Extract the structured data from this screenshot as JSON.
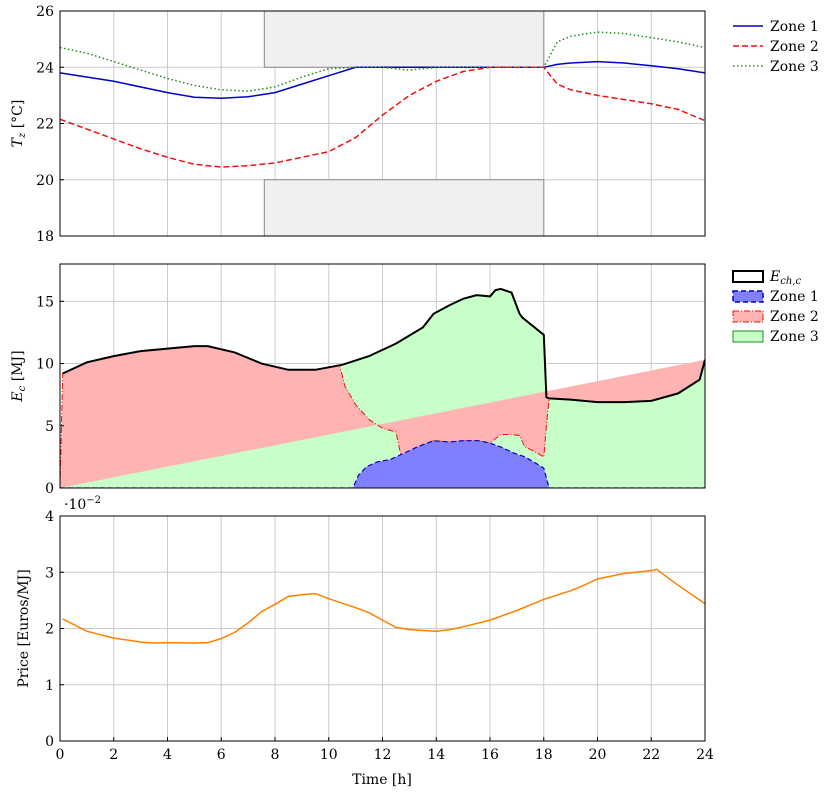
{
  "xaxis": {
    "label": "Time [h]",
    "ticks": [
      "0",
      "2",
      "4",
      "6",
      "8",
      "10",
      "12",
      "14",
      "16",
      "18",
      "20",
      "22",
      "24"
    ],
    "xlim": [
      0,
      24
    ]
  },
  "colors": {
    "zone1": "#0000cc",
    "zone2": "#ee1111",
    "zone3": "#228822",
    "price": "#ff8000",
    "bound_fill": "#f0f0f0",
    "area_zone1": "#8080ff",
    "area_zone2": "#ffb3b3",
    "area_zone3": "#c8ffc8"
  },
  "chart_data": [
    {
      "type": "line",
      "ylabel": "T_z [°C]",
      "ylim": [
        18,
        26
      ],
      "yticks": [
        "18",
        "20",
        "22",
        "24",
        "26"
      ],
      "grid": true,
      "legend_position": "right-top",
      "comfort_bounds": {
        "upper": [
          [
            0,
            26
          ],
          [
            7.6,
            26
          ],
          [
            7.6,
            24
          ],
          [
            18,
            24
          ],
          [
            18,
            26
          ]
        ],
        "lower": [
          [
            0,
            18
          ],
          [
            7.6,
            18
          ],
          [
            7.6,
            20
          ],
          [
            18,
            20
          ],
          [
            18,
            18
          ]
        ]
      },
      "series": [
        {
          "name": "Zone 1",
          "style": "solid",
          "x": [
            0,
            2,
            4,
            5,
            6,
            7,
            8,
            9,
            10,
            11,
            12,
            13,
            14,
            15,
            16,
            17,
            18,
            18.5,
            19,
            20,
            21,
            22,
            23,
            24
          ],
          "y": [
            23.8,
            23.5,
            23.1,
            22.93,
            22.9,
            22.95,
            23.1,
            23.4,
            23.7,
            24.0,
            24.0,
            24.0,
            24.0,
            24.0,
            24.0,
            24.0,
            24.0,
            24.1,
            24.15,
            24.2,
            24.15,
            24.05,
            23.95,
            23.8
          ]
        },
        {
          "name": "Zone 2",
          "style": "dashed",
          "x": [
            0,
            1,
            2,
            3,
            4,
            5,
            6,
            7,
            8,
            9,
            10,
            11,
            12,
            13,
            14,
            15,
            16,
            17,
            18,
            18.5,
            19,
            20,
            21,
            22,
            23,
            24
          ],
          "y": [
            22.15,
            21.8,
            21.45,
            21.1,
            20.8,
            20.55,
            20.45,
            20.5,
            20.6,
            20.8,
            21.0,
            21.5,
            22.3,
            23.0,
            23.5,
            23.85,
            24.0,
            24.0,
            24.0,
            23.4,
            23.2,
            23.0,
            22.85,
            22.7,
            22.5,
            22.1
          ]
        },
        {
          "name": "Zone 3",
          "style": "dotted",
          "x": [
            0,
            1,
            2,
            3,
            4,
            5,
            6,
            7,
            8,
            9,
            10,
            11,
            12,
            13,
            14,
            15,
            16,
            17,
            18,
            18.5,
            19,
            20,
            21,
            22,
            23,
            24
          ],
          "y": [
            24.7,
            24.5,
            24.2,
            23.9,
            23.6,
            23.35,
            23.2,
            23.15,
            23.3,
            23.65,
            23.95,
            24.0,
            24.0,
            23.9,
            24.0,
            24.0,
            24.0,
            24.0,
            24.0,
            24.9,
            25.1,
            25.25,
            25.2,
            25.05,
            24.9,
            24.7
          ]
        }
      ]
    },
    {
      "type": "area",
      "ylabel": "E_c [MJ]",
      "ylim": [
        0,
        18
      ],
      "yticks": [
        "0",
        "5",
        "10",
        "15"
      ],
      "grid": true,
      "legend_position": "right-top",
      "total": {
        "name": "E_ch,c",
        "x": [
          0.1,
          1,
          2,
          3,
          4,
          5,
          5.5,
          6.5,
          7.5,
          8.5,
          9.5,
          10.5,
          11.5,
          12.5,
          13.5,
          13.9,
          14.5,
          15,
          15.5,
          16,
          16.2,
          16.4,
          16.8,
          17.1,
          17.2,
          18,
          18.1,
          18.2,
          19,
          20,
          21,
          22,
          23,
          23.8,
          24
        ],
        "y": [
          9.2,
          10.1,
          10.6,
          11.0,
          11.2,
          11.4,
          11.4,
          10.9,
          10.0,
          9.5,
          9.5,
          9.9,
          10.6,
          11.6,
          12.9,
          14.0,
          14.7,
          15.2,
          15.5,
          15.4,
          15.9,
          16.0,
          15.7,
          14.0,
          13.7,
          12.3,
          7.3,
          7.2,
          7.1,
          6.9,
          6.9,
          7.0,
          7.6,
          8.7,
          10.3
        ]
      },
      "zone1": {
        "name": "Zone 1",
        "x": [
          0,
          10.9,
          11.1,
          11.4,
          11.8,
          12.3,
          12.8,
          13.3,
          13.9,
          14.5,
          15.0,
          15.6,
          16.0,
          16.4,
          16.9,
          17.3,
          17.7,
          18.0,
          18.2,
          24
        ],
        "y": [
          0,
          0,
          1.0,
          1.7,
          2.1,
          2.3,
          2.8,
          3.3,
          3.8,
          3.7,
          3.8,
          3.8,
          3.6,
          3.3,
          2.8,
          2.5,
          2.0,
          1.6,
          0,
          0
        ]
      },
      "zone12": {
        "name": "Zone 2",
        "x": [
          0,
          0.1,
          1,
          2,
          3,
          4,
          5,
          5.5,
          6.5,
          7.5,
          8.5,
          9.5,
          10.4,
          10.6,
          11.0,
          11.5,
          12.0,
          12.5,
          12.7,
          13.3,
          13.9,
          14.5,
          15.0,
          15.6,
          16.0,
          16.4,
          16.8,
          17.1,
          17.3,
          17.6,
          18.0,
          18.1,
          18.2,
          19,
          20,
          21,
          22,
          23,
          23.8,
          24
        ],
        "y": [
          0,
          9.2,
          10.1,
          10.6,
          11.0,
          11.2,
          11.4,
          11.4,
          10.9,
          10.0,
          9.5,
          9.5,
          9.9,
          8.2,
          6.7,
          5.5,
          4.8,
          4.5,
          2.5,
          3.3,
          3.8,
          3.7,
          3.8,
          3.8,
          3.6,
          4.3,
          4.3,
          4.2,
          3.3,
          3.0,
          2.5,
          5.0,
          7.2,
          7.1,
          6.9,
          6.9,
          7.0,
          7.6,
          8.7,
          10.3
        ]
      }
    },
    {
      "type": "line",
      "ylabel": "Price [Euros/MJ]",
      "scale_label": "·10",
      "scale_exponent": "−2",
      "ylim": [
        0,
        4
      ],
      "yticks": [
        "0",
        "1",
        "2",
        "3",
        "4"
      ],
      "grid": true,
      "series": [
        {
          "x": [
            0.1,
            1,
            2,
            3,
            3.5,
            4,
            5,
            5.5,
            6,
            6.5,
            7,
            7.5,
            8,
            8.5,
            9,
            9.5,
            10,
            11,
            11.5,
            12,
            12.5,
            13,
            14,
            14.5,
            15,
            16,
            17,
            18,
            19,
            19.5,
            20,
            21,
            22,
            22.2,
            23,
            24
          ],
          "y": [
            2.17,
            1.95,
            1.83,
            1.76,
            1.74,
            1.75,
            1.74,
            1.75,
            1.82,
            1.93,
            2.1,
            2.3,
            2.43,
            2.57,
            2.6,
            2.62,
            2.53,
            2.37,
            2.28,
            2.15,
            2.02,
            1.98,
            1.95,
            1.98,
            2.03,
            2.15,
            2.32,
            2.52,
            2.67,
            2.77,
            2.88,
            2.98,
            3.03,
            3.05,
            2.77,
            2.44
          ]
        }
      ]
    }
  ]
}
